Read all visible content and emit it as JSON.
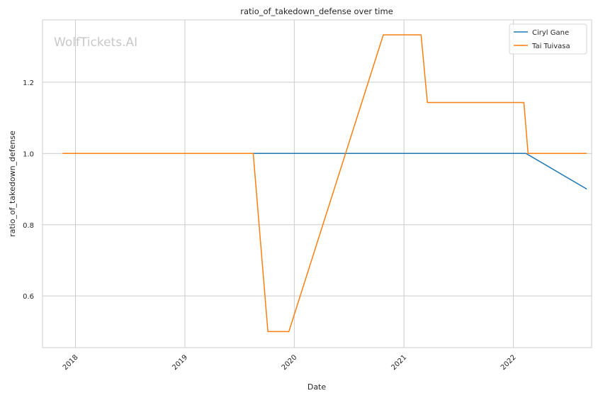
{
  "chart_data": {
    "type": "line",
    "title": "ratio_of_takedown_defense over time",
    "xlabel": "Date",
    "ylabel": "ratio_of_takedown_defense",
    "watermark": "WolfTickets.AI",
    "x_ticks": [
      "2018",
      "2019",
      "2020",
      "2021",
      "2022"
    ],
    "y_ticks": [
      "0.6",
      "0.8",
      "1.0",
      "1.2"
    ],
    "xlim": [
      "2017-09-13",
      "2022-09-19"
    ],
    "ylim": [
      0.455,
      1.375
    ],
    "grid": true,
    "legend_position": "top-right",
    "series": [
      {
        "name": "Ciryl Gane",
        "color": "#1f77b4",
        "points": [
          [
            "2019-08-10",
            1.0
          ],
          [
            "2022-02-12",
            1.0
          ],
          [
            "2022-09-03",
            0.9
          ]
        ]
      },
      {
        "name": "Tai Tuivasa",
        "color": "#ff7f0e",
        "points": [
          [
            "2017-11-19",
            1.0
          ],
          [
            "2019-08-17",
            1.0
          ],
          [
            "2019-10-05",
            0.5
          ],
          [
            "2019-12-14",
            0.5
          ],
          [
            "2020-06-20",
            1.0
          ],
          [
            "2020-10-24",
            1.333
          ],
          [
            "2021-02-27",
            1.333
          ],
          [
            "2021-03-20",
            1.143
          ],
          [
            "2022-02-05",
            1.143
          ],
          [
            "2022-02-19",
            1.0
          ],
          [
            "2022-09-03",
            1.0
          ]
        ]
      }
    ]
  }
}
